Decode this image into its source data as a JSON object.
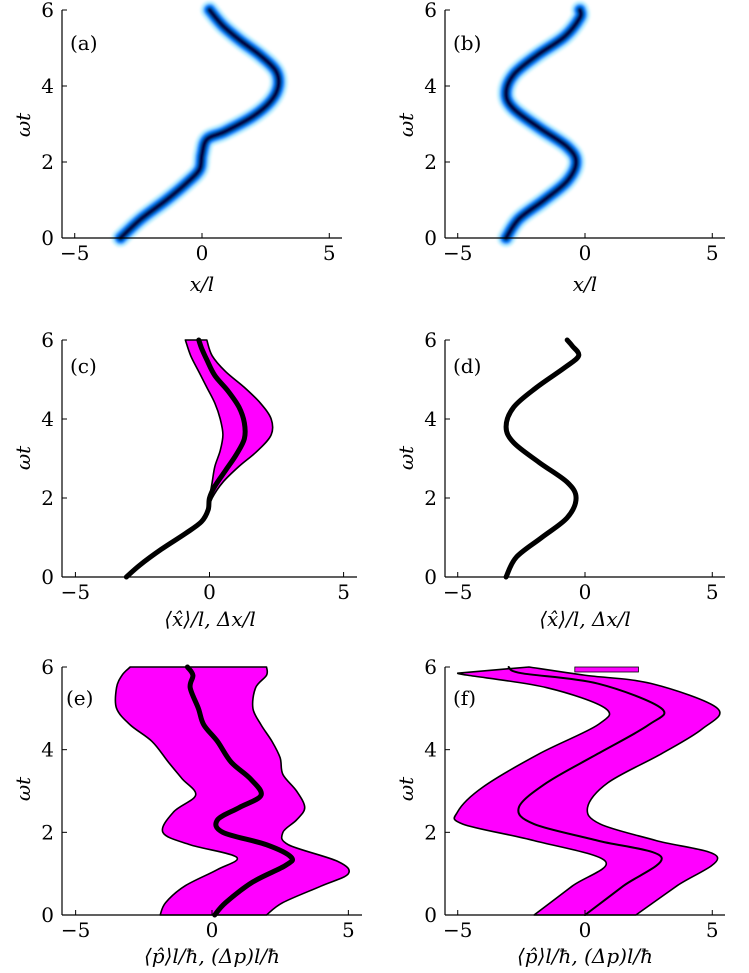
{
  "colors": {
    "band_fill": "#ff00ff",
    "line": "#000000",
    "heatmap_core": "#000040",
    "heatmap_mid": "#0080ff",
    "heatmap_edge": "#80e0ff"
  },
  "chart_data": [
    {
      "id": "a",
      "type": "heatmap",
      "panel_label": "(a)",
      "xlabel": "x/l",
      "ylabel": "ωt",
      "xlim": [
        -5.5,
        5.5
      ],
      "ylim": [
        0,
        6
      ],
      "xticks": [
        -5,
        0,
        5
      ],
      "yticks": [
        0,
        2,
        4,
        6
      ],
      "ridge": [
        [
          -3.2,
          0
        ],
        [
          -2.4,
          0.5
        ],
        [
          -1.4,
          1.0
        ],
        [
          -0.6,
          1.45
        ],
        [
          -0.1,
          1.8
        ],
        [
          0.0,
          2.2
        ],
        [
          0.2,
          2.6
        ],
        [
          0.9,
          2.8
        ],
        [
          2.0,
          3.2
        ],
        [
          2.7,
          3.6
        ],
        [
          3.0,
          4.0
        ],
        [
          2.9,
          4.4
        ],
        [
          2.3,
          4.8
        ],
        [
          1.5,
          5.2
        ],
        [
          0.8,
          5.6
        ],
        [
          0.3,
          6.0
        ]
      ]
    },
    {
      "id": "b",
      "type": "heatmap",
      "panel_label": "(b)",
      "xlabel": "x/l",
      "ylabel": "ωt",
      "xlim": [
        -5.5,
        5.5
      ],
      "ylim": [
        0,
        6
      ],
      "xticks": [
        -5,
        0,
        5
      ],
      "yticks": [
        0,
        2,
        4,
        6
      ],
      "ridge": [
        [
          -3.1,
          0
        ],
        [
          -2.6,
          0.5
        ],
        [
          -1.6,
          1.0
        ],
        [
          -0.7,
          1.5
        ],
        [
          -0.35,
          2.0
        ],
        [
          -0.7,
          2.4
        ],
        [
          -1.8,
          2.9
        ],
        [
          -2.8,
          3.4
        ],
        [
          -3.1,
          3.8
        ],
        [
          -2.8,
          4.3
        ],
        [
          -1.9,
          4.8
        ],
        [
          -0.8,
          5.3
        ],
        [
          -0.2,
          5.8
        ],
        [
          -0.2,
          6.0
        ]
      ]
    },
    {
      "id": "c",
      "type": "line",
      "panel_label": "(c)",
      "xlabel": "⟨x̂⟩/l, Δx/l",
      "ylabel": "ωt",
      "xlim": [
        -5.5,
        5.5
      ],
      "ylim": [
        0,
        6
      ],
      "xticks": [
        -5,
        0,
        5
      ],
      "yticks": [
        0,
        2,
        4,
        6
      ],
      "series": [
        {
          "role": "mean",
          "points": [
            [
              -3.1,
              0
            ],
            [
              -2.6,
              0.3
            ],
            [
              -1.8,
              0.7
            ],
            [
              -0.9,
              1.1
            ],
            [
              -0.3,
              1.4
            ],
            [
              -0.05,
              1.7
            ],
            [
              0.0,
              2.0
            ],
            [
              0.2,
              2.3
            ],
            [
              0.6,
              2.7
            ],
            [
              1.0,
              3.1
            ],
            [
              1.3,
              3.5
            ],
            [
              1.3,
              3.9
            ],
            [
              1.1,
              4.3
            ],
            [
              0.7,
              4.7
            ],
            [
              0.2,
              5.1
            ],
            [
              -0.1,
              5.5
            ],
            [
              -0.3,
              5.8
            ],
            [
              -0.4,
              6.0
            ]
          ]
        },
        {
          "role": "band",
          "lower": [
            [
              -3.1,
              0
            ],
            [
              -2.6,
              0.3
            ],
            [
              -1.8,
              0.7
            ],
            [
              -0.9,
              1.1
            ],
            [
              -0.3,
              1.4
            ],
            [
              -0.05,
              1.7
            ],
            [
              0.0,
              2.0
            ],
            [
              0.1,
              2.4
            ],
            [
              0.2,
              2.8
            ],
            [
              0.4,
              3.2
            ],
            [
              0.5,
              3.6
            ],
            [
              0.4,
              4.0
            ],
            [
              0.2,
              4.4
            ],
            [
              -0.1,
              4.8
            ],
            [
              -0.4,
              5.2
            ],
            [
              -0.7,
              5.6
            ],
            [
              -0.9,
              6.0
            ]
          ],
          "upper": [
            [
              -3.1,
              0
            ],
            [
              -2.6,
              0.3
            ],
            [
              -1.8,
              0.7
            ],
            [
              -0.9,
              1.1
            ],
            [
              -0.3,
              1.4
            ],
            [
              -0.05,
              1.7
            ],
            [
              0.1,
              2.0
            ],
            [
              0.5,
              2.4
            ],
            [
              1.1,
              2.8
            ],
            [
              1.8,
              3.2
            ],
            [
              2.3,
              3.6
            ],
            [
              2.3,
              4.0
            ],
            [
              1.9,
              4.4
            ],
            [
              1.3,
              4.8
            ],
            [
              0.6,
              5.2
            ],
            [
              0.1,
              5.6
            ],
            [
              -0.1,
              6.0
            ]
          ]
        }
      ]
    },
    {
      "id": "d",
      "type": "line",
      "panel_label": "(d)",
      "xlabel": "⟨x̂⟩/l, Δx/l",
      "ylabel": "ωt",
      "xlim": [
        -5.5,
        5.5
      ],
      "ylim": [
        0,
        6
      ],
      "xticks": [
        -5,
        0,
        5
      ],
      "yticks": [
        0,
        2,
        4,
        6
      ],
      "series": [
        {
          "role": "mean",
          "points": [
            [
              -3.1,
              0
            ],
            [
              -2.7,
              0.5
            ],
            [
              -1.7,
              1.0
            ],
            [
              -0.7,
              1.5
            ],
            [
              -0.35,
              2.0
            ],
            [
              -0.7,
              2.4
            ],
            [
              -1.8,
              2.9
            ],
            [
              -2.8,
              3.4
            ],
            [
              -3.1,
              3.8
            ],
            [
              -2.8,
              4.3
            ],
            [
              -1.9,
              4.8
            ],
            [
              -0.8,
              5.3
            ],
            [
              -0.25,
              5.6
            ],
            [
              -0.5,
              5.85
            ],
            [
              -0.7,
              6.0
            ]
          ]
        }
      ]
    },
    {
      "id": "e",
      "type": "line",
      "panel_label": "(e)",
      "xlabel": "⟨p̂⟩l/ħ, (Δp)l/ħ",
      "ylabel": "ωt",
      "xlim": [
        -5.5,
        5.5
      ],
      "ylim": [
        0,
        6
      ],
      "xticks": [
        -5,
        0,
        5
      ],
      "yticks": [
        0,
        2,
        4,
        6
      ],
      "series": [
        {
          "role": "mean",
          "points": [
            [
              0.1,
              0
            ],
            [
              0.5,
              0.3
            ],
            [
              1.5,
              0.8
            ],
            [
              2.7,
              1.2
            ],
            [
              2.9,
              1.4
            ],
            [
              2.0,
              1.7
            ],
            [
              0.4,
              2.0
            ],
            [
              0.2,
              2.3
            ],
            [
              1.0,
              2.6
            ],
            [
              1.8,
              2.9
            ],
            [
              1.4,
              3.3
            ],
            [
              0.7,
              3.7
            ],
            [
              0.2,
              4.2
            ],
            [
              -0.3,
              4.6
            ],
            [
              -0.5,
              5.0
            ],
            [
              -0.8,
              5.5
            ],
            [
              -0.7,
              5.8
            ],
            [
              -0.9,
              6.0
            ]
          ]
        },
        {
          "role": "band",
          "lower": [
            [
              -1.9,
              0
            ],
            [
              -1.7,
              0.3
            ],
            [
              -1.0,
              0.7
            ],
            [
              0.2,
              1.1
            ],
            [
              0.9,
              1.4
            ],
            [
              -0.8,
              1.7
            ],
            [
              -1.8,
              2.0
            ],
            [
              -1.4,
              2.5
            ],
            [
              -0.6,
              2.9
            ],
            [
              -1.1,
              3.3
            ],
            [
              -1.6,
              3.7
            ],
            [
              -2.2,
              4.2
            ],
            [
              -3.0,
              4.6
            ],
            [
              -3.5,
              5.0
            ],
            [
              -3.5,
              5.5
            ],
            [
              -3.3,
              5.8
            ],
            [
              -3.0,
              6.0
            ]
          ],
          "upper": [
            [
              2.0,
              0
            ],
            [
              2.6,
              0.3
            ],
            [
              4.0,
              0.7
            ],
            [
              5.0,
              1.0
            ],
            [
              4.6,
              1.3
            ],
            [
              2.8,
              1.7
            ],
            [
              2.6,
              2.0
            ],
            [
              3.1,
              2.3
            ],
            [
              3.4,
              2.6
            ],
            [
              3.1,
              3.0
            ],
            [
              2.6,
              3.4
            ],
            [
              2.5,
              3.8
            ],
            [
              2.2,
              4.2
            ],
            [
              1.8,
              4.6
            ],
            [
              1.5,
              5.0
            ],
            [
              1.6,
              5.5
            ],
            [
              2.0,
              5.8
            ],
            [
              2.0,
              6.0
            ]
          ]
        }
      ]
    },
    {
      "id": "f",
      "type": "line",
      "panel_label": "(f)",
      "xlabel": "⟨p̂⟩l/ħ, (Δp)l/ħ",
      "ylabel": "ωt",
      "xlim": [
        -5.5,
        5.5
      ],
      "ylim": [
        0,
        6
      ],
      "xticks": [
        -5,
        0,
        5
      ],
      "yticks": [
        0,
        2,
        4,
        6
      ],
      "series": [
        {
          "role": "mean",
          "points": [
            [
              0,
              0
            ],
            [
              1.5,
              0.7
            ],
            [
              3.0,
              1.4
            ],
            [
              0.5,
              1.8
            ],
            [
              -2.0,
              2.2
            ],
            [
              -2.6,
              2.6
            ],
            [
              -1.5,
              3.2
            ],
            [
              0.5,
              3.9
            ],
            [
              2.5,
              4.6
            ],
            [
              3.0,
              5.0
            ],
            [
              0.5,
              5.6
            ],
            [
              -2.5,
              5.85
            ],
            [
              -3.0,
              6.0
            ]
          ]
        },
        {
          "role": "band",
          "lower": [
            [
              -2.0,
              0
            ],
            [
              -0.5,
              0.7
            ],
            [
              0.8,
              1.3
            ],
            [
              -2.0,
              1.8
            ],
            [
              -4.8,
              2.2
            ],
            [
              -5.0,
              2.5
            ],
            [
              -4.0,
              3.1
            ],
            [
              -1.8,
              3.9
            ],
            [
              0.5,
              4.6
            ],
            [
              0.8,
              5.0
            ],
            [
              -1.5,
              5.5
            ],
            [
              -4.6,
              5.8
            ],
            [
              -5.0,
              5.85
            ]
          ],
          "upper": [
            [
              2.0,
              0
            ],
            [
              3.6,
              0.7
            ],
            [
              5.2,
              1.4
            ],
            [
              2.8,
              1.8
            ],
            [
              0.6,
              2.2
            ],
            [
              0.1,
              2.6
            ],
            [
              0.9,
              3.2
            ],
            [
              3.0,
              3.9
            ],
            [
              4.6,
              4.5
            ],
            [
              5.2,
              5.0
            ],
            [
              2.6,
              5.6
            ],
            [
              0.0,
              5.8
            ],
            [
              -2.2,
              6.0
            ]
          ],
          "cap": [
            -0.4,
            2.1
          ]
        }
      ]
    }
  ]
}
